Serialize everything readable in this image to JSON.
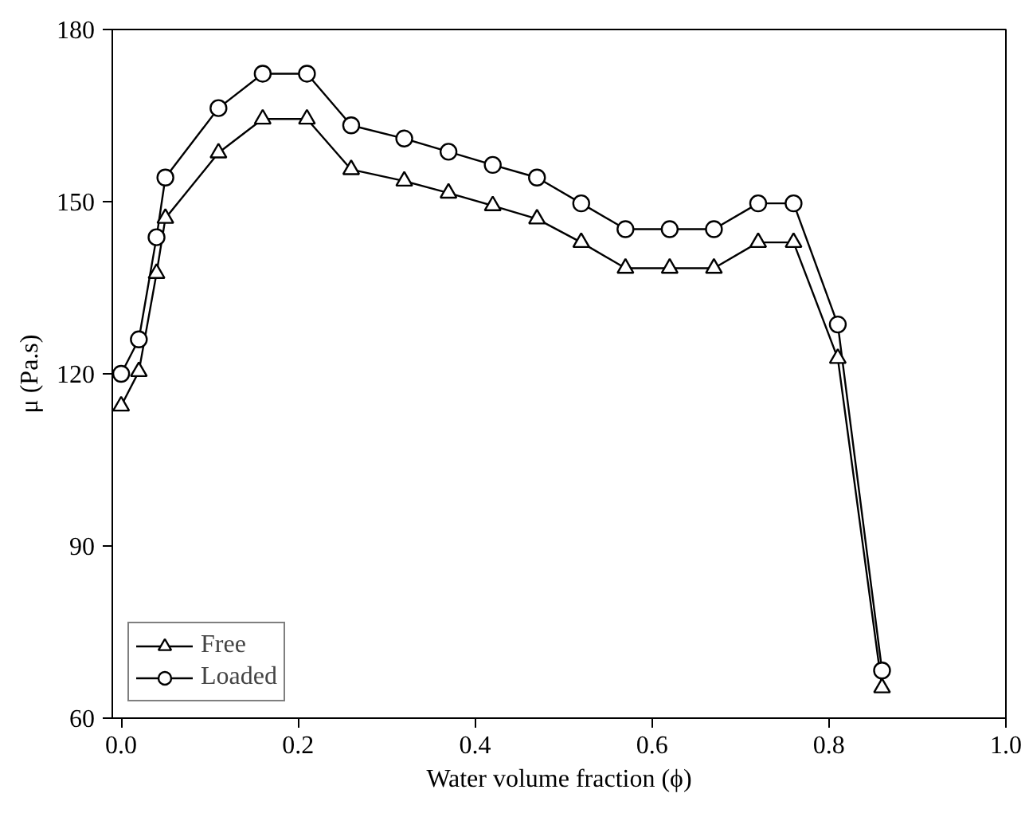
{
  "chart_data": {
    "type": "line",
    "xlabel": "Water volume fraction (ϕ)",
    "ylabel": "μ (Pa.s)",
    "x": [
      0,
      0.02,
      0.04,
      0.05,
      0.11,
      0.16,
      0.21,
      0.26,
      0.32,
      0.37,
      0.42,
      0.47,
      0.52,
      0.57,
      0.62,
      0.67,
      0.72,
      0.76,
      0.81,
      0.86
    ],
    "series": [
      {
        "name": "Free",
        "color": "#000000",
        "marker": "triangle",
        "values": [
          114.4,
          120.4,
          137.5,
          147.1,
          158.5,
          164.4,
          164.4,
          155.6,
          153.6,
          151.5,
          149.3,
          147.0,
          142.9,
          138.4,
          138.4,
          138.4,
          142.9,
          142.9,
          122.7,
          65.3
        ]
      },
      {
        "name": "Loaded",
        "color": "#000000",
        "marker": "circle",
        "values": [
          120.0,
          126.0,
          143.8,
          154.2,
          166.3,
          172.3,
          172.3,
          163.3,
          161.0,
          158.7,
          156.4,
          154.2,
          149.7,
          145.2,
          145.2,
          145.2,
          149.7,
          149.7,
          128.6,
          68.3
        ]
      }
    ],
    "xlim": [
      -0.01,
      1.0
    ],
    "ylim": [
      60,
      180
    ],
    "xticks": [
      {
        "value": 0,
        "label": "0.0"
      },
      0.2,
      0.4,
      0.6,
      0.8,
      {
        "value": 1.0,
        "label": "1.0"
      }
    ],
    "yticks": [
      60,
      90,
      120,
      150,
      180
    ],
    "grid": false,
    "legend": "bottom left",
    "line_style": "solid"
  }
}
